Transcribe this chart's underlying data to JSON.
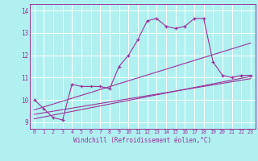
{
  "title": "",
  "xlabel": "Windchill (Refroidissement éolien,°C)",
  "bg_color": "#b0f0f0",
  "line_color": "#993399",
  "grid_color": "#ffffff",
  "xlim": [
    -0.5,
    23.5
  ],
  "ylim": [
    8.7,
    14.3
  ],
  "yticks": [
    9,
    10,
    11,
    12,
    13,
    14
  ],
  "xticks": [
    0,
    1,
    2,
    3,
    4,
    5,
    6,
    7,
    8,
    9,
    10,
    11,
    12,
    13,
    14,
    15,
    16,
    17,
    18,
    19,
    20,
    21,
    22,
    23
  ],
  "line1_x": [
    0,
    1,
    2,
    3,
    4,
    5,
    6,
    7,
    8,
    9,
    10,
    11,
    12,
    13,
    14,
    15,
    16,
    17,
    18,
    19,
    20,
    21,
    22,
    23
  ],
  "line1_y": [
    10.0,
    9.6,
    9.2,
    9.1,
    10.7,
    10.6,
    10.6,
    10.6,
    10.5,
    11.5,
    12.0,
    12.7,
    13.55,
    13.65,
    13.3,
    13.2,
    13.3,
    13.65,
    13.65,
    11.7,
    11.1,
    11.0,
    11.1,
    11.1
  ],
  "line2_x": [
    0,
    23
  ],
  "line2_y": [
    9.15,
    11.05
  ],
  "line3_x": [
    0,
    23
  ],
  "line3_y": [
    9.35,
    10.95
  ],
  "line4_x": [
    0,
    23
  ],
  "line4_y": [
    9.55,
    12.55
  ]
}
